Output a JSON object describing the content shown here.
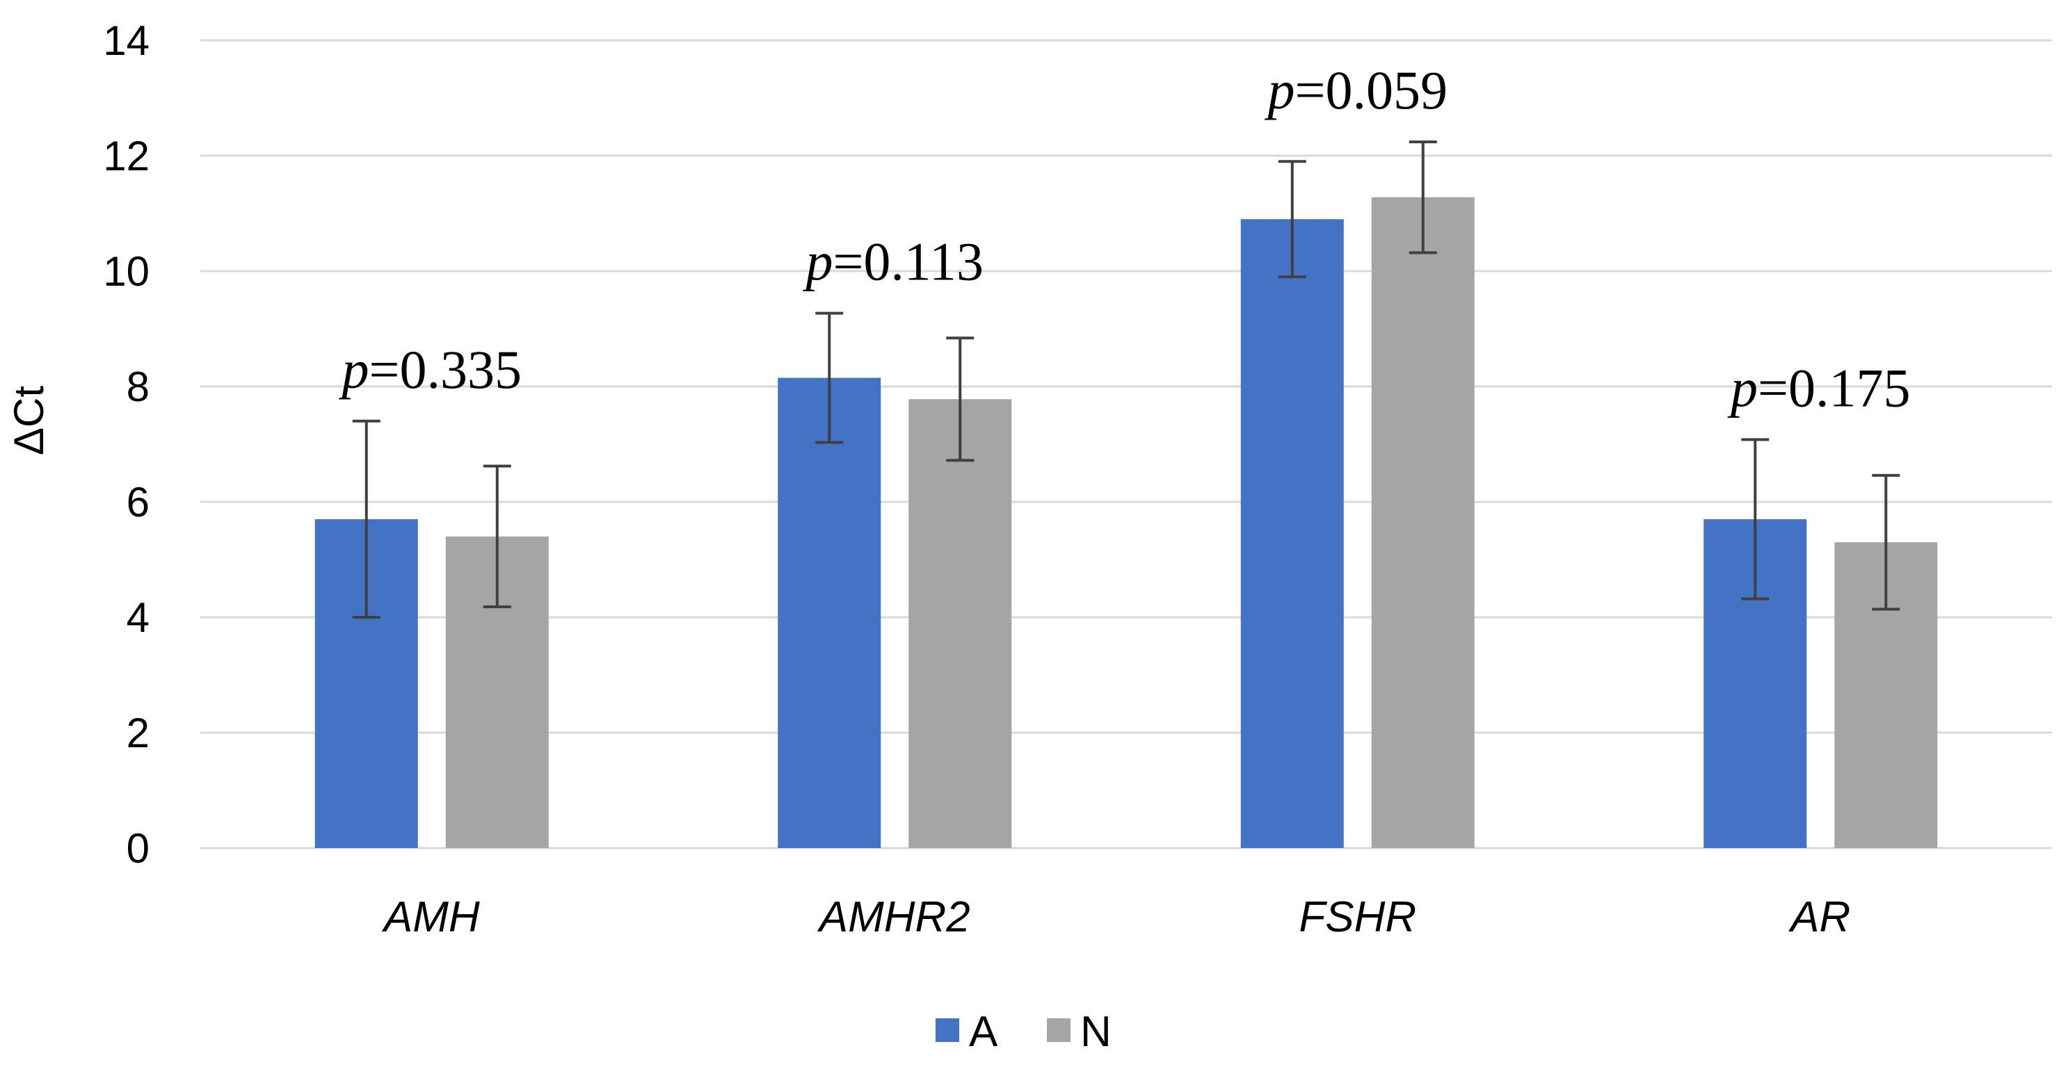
{
  "chart_data": {
    "type": "bar",
    "title": "",
    "xlabel": "",
    "ylabel": "ΔCt",
    "ylim": [
      0,
      14
    ],
    "yticks": [
      0,
      2,
      4,
      6,
      8,
      10,
      12,
      14
    ],
    "grid": true,
    "legend_position": "bottom",
    "categories": [
      "AMH",
      "AMHR2",
      "FSHR",
      "AR"
    ],
    "series": [
      {
        "name": "A",
        "color": "#4472c4",
        "values": [
          5.7,
          8.15,
          10.9,
          5.7
        ],
        "error": [
          1.7,
          1.12,
          1.0,
          1.38
        ]
      },
      {
        "name": "N",
        "color": "#a5a5a5",
        "values": [
          5.4,
          7.78,
          11.28,
          5.3
        ],
        "error": [
          1.22,
          1.06,
          0.96,
          1.16
        ]
      }
    ],
    "annotations": [
      {
        "category": "AMH",
        "p_symbol": "p",
        "text": "=0.335"
      },
      {
        "category": "AMHR2",
        "p_symbol": "p",
        "text": "=0.113"
      },
      {
        "category": "FSHR",
        "p_symbol": "p",
        "text": "=0.059"
      },
      {
        "category": "AR",
        "p_symbol": "p",
        "text": "=0.175"
      }
    ]
  }
}
